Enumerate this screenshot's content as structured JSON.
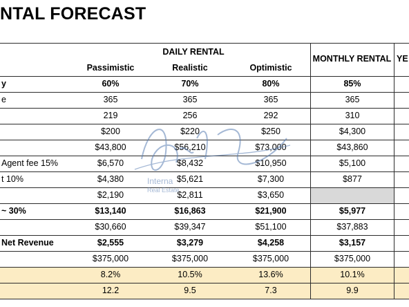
{
  "title": "NTAL FORECAST",
  "headers": {
    "daily_group": "DAILY RENTAL",
    "monthly": "MONTHLY RENTAL",
    "yearly_cut": "YE",
    "scenarios": [
      "Passimistic",
      "Realistic",
      "Optimistic"
    ]
  },
  "rows": [
    {
      "label": "y",
      "bold": true,
      "values": [
        "60%",
        "70%",
        "80%",
        "85%"
      ]
    },
    {
      "label": "e",
      "bold": false,
      "values": [
        "365",
        "365",
        "365",
        "365"
      ]
    },
    {
      "label": "",
      "bold": false,
      "values": [
        "219",
        "256",
        "292",
        "310"
      ]
    },
    {
      "label": "",
      "bold": false,
      "values": [
        "$200",
        "$220",
        "$250",
        "$4,300"
      ]
    },
    {
      "label": "",
      "bold": false,
      "values": [
        "$43,800",
        "$56,210",
        "$73,000",
        "$43,860"
      ]
    },
    {
      "label": "Agent fee 15%",
      "bold": false,
      "values": [
        "$6,570",
        "$8,432",
        "$10,950",
        "$5,100"
      ]
    },
    {
      "label": "t 10%",
      "bold": false,
      "values": [
        "$4,380",
        "$5,621",
        "$7,300",
        "$877"
      ]
    },
    {
      "label": "",
      "bold": false,
      "values": [
        "$2,190",
        "$2,811",
        "$3,650",
        ""
      ]
    },
    {
      "label": "~ 30%",
      "bold": true,
      "values": [
        "$13,140",
        "$16,863",
        "$21,900",
        "$5,977"
      ]
    },
    {
      "label": "",
      "bold": false,
      "values": [
        "$30,660",
        "$39,347",
        "$51,100",
        "$37,883"
      ]
    },
    {
      "label": "Net Revenue",
      "bold": true,
      "values": [
        "$2,555",
        "$3,279",
        "$4,258",
        "$3,157"
      ]
    },
    {
      "label": "",
      "bold": false,
      "values": [
        "$375,000",
        "$375,000",
        "$375,000",
        "$375,000"
      ]
    },
    {
      "label": "",
      "bold": false,
      "values": [
        "8.2%",
        "10.5%",
        "13.6%",
        "10.1%"
      ]
    },
    {
      "label": "",
      "bold": false,
      "values": [
        "12.2",
        "9.5",
        "7.3",
        "9.9"
      ]
    }
  ],
  "watermark": {
    "script": "Rich Flag",
    "line1": "Interna",
    "line2": "Real Estate"
  },
  "colors": {
    "highlight": "#fcecc4",
    "gray_cell": "#d9d9d9",
    "watermark": "#5b7fb3"
  }
}
